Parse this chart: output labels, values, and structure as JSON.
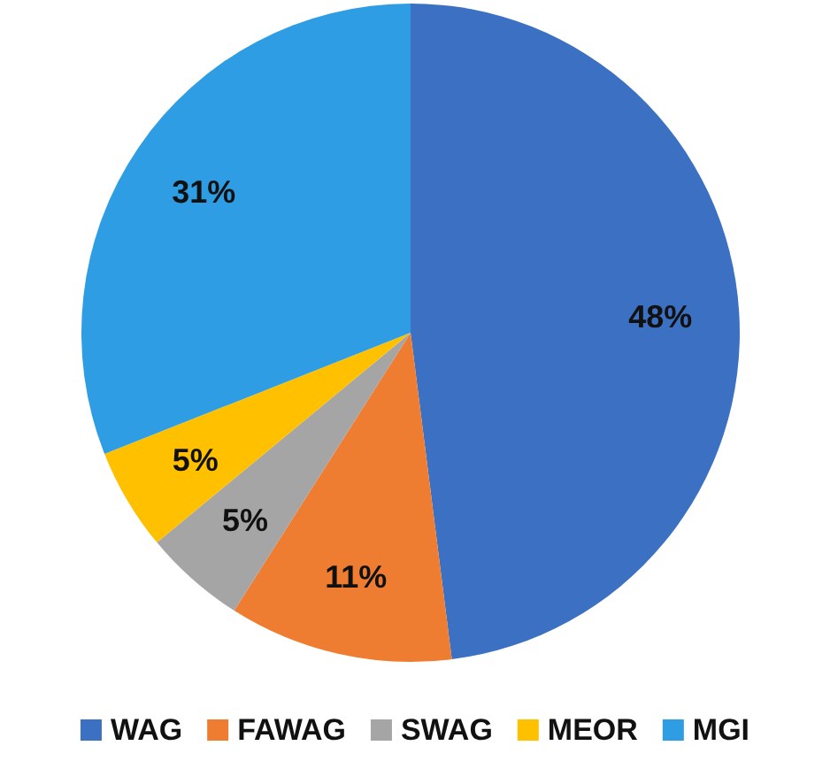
{
  "chart_data": {
    "type": "pie",
    "categories": [
      "WAG",
      "FAWAG",
      "SWAG",
      "MEOR",
      "MGI"
    ],
    "values": [
      48,
      11,
      5,
      5,
      31
    ],
    "value_labels": [
      "48%",
      "11%",
      "5%",
      "5%",
      "31%"
    ],
    "colors": [
      "#3c70c2",
      "#ee7d31",
      "#a5a5a5",
      "#ffc000",
      "#2e9de3"
    ],
    "legend": "bottom"
  }
}
